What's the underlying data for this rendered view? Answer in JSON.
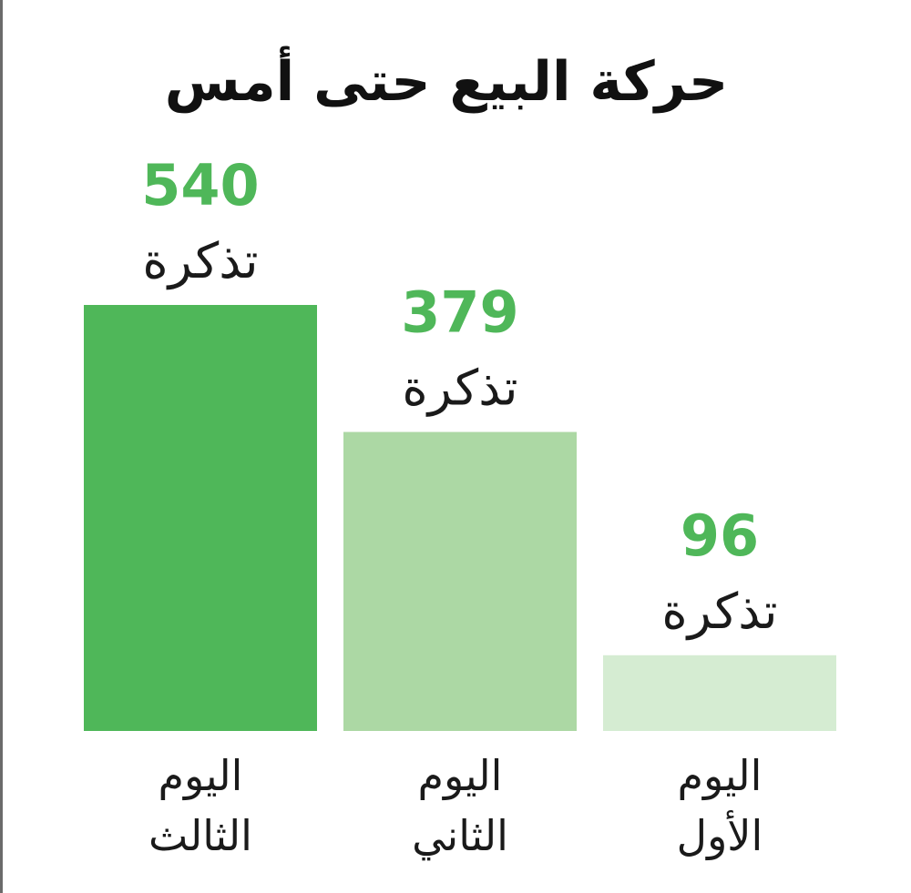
{
  "chart_data": {
    "type": "bar",
    "title": "حركة البيع حتى أمس",
    "categories": [
      [
        "اليوم",
        "الثالث"
      ],
      [
        "اليوم",
        "الثاني"
      ],
      [
        "اليوم",
        "الأول"
      ]
    ],
    "values": [
      540,
      379,
      96
    ],
    "unit": "تذكرة",
    "ylim": [
      0,
      540
    ],
    "grid": false,
    "colors": {
      "bars": [
        "#4fb759",
        "#acd8a4",
        "#d5ecd2"
      ],
      "value_labels": "#4fb759",
      "text": "#1a1a1a"
    }
  }
}
